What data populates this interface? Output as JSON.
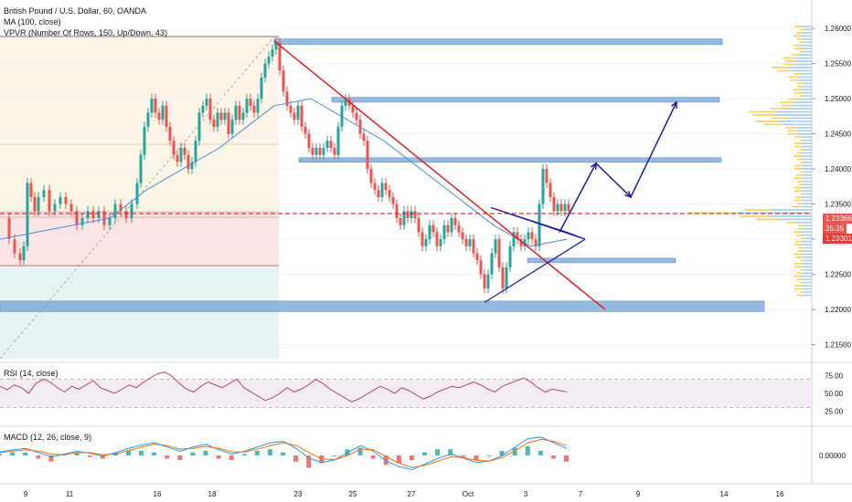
{
  "legend": {
    "symbol": "British Pound / U.S. Dollar, 60, OANDA",
    "ma": "MA (100, close)",
    "vpvr": "VPVR (Number Of Rows, 150, Up/Down, 43)",
    "rsi": "RSI (14, close)",
    "macd": "MACD (12, 26, close, 9)"
  },
  "price_axis": [
    "1.26000",
    "1.25500",
    "1.25000",
    "1.24500",
    "1.24000",
    "1.23500",
    "1.23000",
    "1.22500",
    "1.22000",
    "1.21500"
  ],
  "rsi_axis": [
    "75.00",
    "50.00",
    "25.00"
  ],
  "macd_axis": [
    "0.00000"
  ],
  "time_axis": [
    "9",
    "11",
    "16",
    "18",
    "23",
    "25",
    "27",
    "Oct",
    "3",
    "7",
    "9",
    "14",
    "16"
  ],
  "tags": {
    "last_price": "1.23366",
    "countdown": "35:35",
    "ma_value": "1.23301"
  },
  "colors": {
    "up": "#26a69a",
    "down": "#ef5350",
    "ma": "#4e8fd6",
    "zone": "#6fa3d8",
    "trendline": "#e01e1e",
    "arrow": "#1a1aa8",
    "vpvr_up": "#9ec8ef",
    "vpvr_down": "#f6c948",
    "rsi_line": "#b03a48",
    "macd_line": "#2196f3",
    "signal_line": "#ff6d00"
  },
  "chart_data": {
    "type": "candlestick",
    "symbol": "GBPUSD",
    "timeframe": "60",
    "ylim": [
      1.213,
      1.263
    ],
    "close_path": [
      [
        0,
        1.233
      ],
      [
        8,
        1.23
      ],
      [
        14,
        1.228
      ],
      [
        20,
        1.227
      ],
      [
        24,
        1.229
      ],
      [
        28,
        1.238
      ],
      [
        32,
        1.236
      ],
      [
        36,
        1.234
      ],
      [
        40,
        1.236
      ],
      [
        46,
        1.237
      ],
      [
        52,
        1.234
      ],
      [
        58,
        1.235
      ],
      [
        64,
        1.236
      ],
      [
        70,
        1.235
      ],
      [
        76,
        1.234
      ],
      [
        82,
        1.232
      ],
      [
        88,
        1.233
      ],
      [
        94,
        1.234
      ],
      [
        100,
        1.233
      ],
      [
        106,
        1.234
      ],
      [
        112,
        1.232
      ],
      [
        118,
        1.233
      ],
      [
        124,
        1.235
      ],
      [
        130,
        1.234
      ],
      [
        136,
        1.233
      ],
      [
        142,
        1.235
      ],
      [
        148,
        1.238
      ],
      [
        152,
        1.242
      ],
      [
        156,
        1.246
      ],
      [
        160,
        1.248
      ],
      [
        164,
        1.25
      ],
      [
        168,
        1.248
      ],
      [
        172,
        1.247
      ],
      [
        176,
        1.249
      ],
      [
        180,
        1.246
      ],
      [
        184,
        1.244
      ],
      [
        188,
        1.242
      ],
      [
        192,
        1.241
      ],
      [
        196,
        1.243
      ],
      [
        200,
        1.242
      ],
      [
        204,
        1.24
      ],
      [
        208,
        1.241
      ],
      [
        212,
        1.244
      ],
      [
        216,
        1.248
      ],
      [
        220,
        1.249
      ],
      [
        224,
        1.25
      ],
      [
        228,
        1.247
      ],
      [
        232,
        1.246
      ],
      [
        236,
        1.248
      ],
      [
        240,
        1.247
      ],
      [
        244,
        1.248
      ],
      [
        248,
        1.245
      ],
      [
        252,
        1.247
      ],
      [
        256,
        1.249
      ],
      [
        260,
        1.247
      ],
      [
        264,
        1.248
      ],
      [
        268,
        1.25
      ],
      [
        272,
        1.249
      ],
      [
        276,
        1.248
      ],
      [
        280,
        1.25
      ],
      [
        284,
        1.253
      ],
      [
        288,
        1.255
      ],
      [
        292,
        1.256
      ],
      [
        296,
        1.257
      ],
      [
        300,
        1.258
      ],
      [
        304,
        1.254
      ],
      [
        308,
        1.251
      ],
      [
        312,
        1.249
      ],
      [
        316,
        1.248
      ],
      [
        320,
        1.247
      ],
      [
        324,
        1.249
      ],
      [
        328,
        1.246
      ],
      [
        332,
        1.245
      ],
      [
        336,
        1.243
      ],
      [
        340,
        1.242
      ],
      [
        344,
        1.243
      ],
      [
        348,
        1.242
      ],
      [
        352,
        1.243
      ],
      [
        356,
        1.244
      ],
      [
        360,
        1.243
      ],
      [
        364,
        1.242
      ],
      [
        368,
        1.246
      ],
      [
        372,
        1.249
      ],
      [
        376,
        1.25
      ],
      [
        380,
        1.249
      ],
      [
        384,
        1.248
      ],
      [
        388,
        1.247
      ],
      [
        392,
        1.245
      ],
      [
        396,
        1.244
      ],
      [
        400,
        1.24
      ],
      [
        404,
        1.238
      ],
      [
        408,
        1.237
      ],
      [
        412,
        1.236
      ],
      [
        416,
        1.238
      ],
      [
        420,
        1.237
      ],
      [
        424,
        1.236
      ],
      [
        428,
        1.235
      ],
      [
        432,
        1.233
      ],
      [
        436,
        1.232
      ],
      [
        440,
        1.234
      ],
      [
        444,
        1.233
      ],
      [
        448,
        1.234
      ],
      [
        452,
        1.233
      ],
      [
        456,
        1.231
      ],
      [
        460,
        1.229
      ],
      [
        464,
        1.23
      ],
      [
        468,
        1.232
      ],
      [
        472,
        1.231
      ],
      [
        476,
        1.229
      ],
      [
        480,
        1.23
      ],
      [
        484,
        1.232
      ],
      [
        488,
        1.231
      ],
      [
        492,
        1.233
      ],
      [
        496,
        1.232
      ],
      [
        500,
        1.231
      ],
      [
        504,
        1.23
      ],
      [
        508,
        1.229
      ],
      [
        512,
        1.23
      ],
      [
        516,
        1.228
      ],
      [
        520,
        1.227
      ],
      [
        524,
        1.225
      ],
      [
        528,
        1.223
      ],
      [
        532,
        1.225
      ],
      [
        536,
        1.228
      ],
      [
        540,
        1.23
      ],
      [
        544,
        1.226
      ],
      [
        548,
        1.223
      ],
      [
        552,
        1.226
      ],
      [
        556,
        1.229
      ],
      [
        560,
        1.231
      ],
      [
        564,
        1.23
      ],
      [
        568,
        1.229
      ],
      [
        572,
        1.23
      ],
      [
        576,
        1.231
      ],
      [
        580,
        1.23
      ],
      [
        584,
        1.229
      ],
      [
        588,
        1.235
      ],
      [
        592,
        1.24
      ],
      [
        596,
        1.238
      ],
      [
        600,
        1.236
      ],
      [
        604,
        1.234
      ],
      [
        608,
        1.235
      ],
      [
        612,
        1.234
      ],
      [
        616,
        1.235
      ],
      [
        620,
        1.234
      ]
    ],
    "ma_path": [
      [
        0,
        1.23
      ],
      [
        40,
        1.231
      ],
      [
        80,
        1.232
      ],
      [
        120,
        1.233
      ],
      [
        160,
        1.237
      ],
      [
        200,
        1.24
      ],
      [
        240,
        1.243
      ],
      [
        280,
        1.247
      ],
      [
        300,
        1.249
      ],
      [
        340,
        1.25
      ],
      [
        380,
        1.247
      ],
      [
        420,
        1.244
      ],
      [
        460,
        1.24
      ],
      [
        500,
        1.236
      ],
      [
        540,
        1.232
      ],
      [
        580,
        1.229
      ],
      [
        620,
        1.23
      ]
    ],
    "zones": [
      [
        300,
        790,
        1.2577,
        1.2585
      ],
      [
        363,
        787,
        1.2495,
        1.2502
      ],
      [
        327,
        789,
        1.241,
        1.2416
      ],
      [
        577,
        739,
        1.2267,
        1.2273
      ],
      [
        0,
        836,
        1.2197,
        1.2212
      ]
    ],
    "trendline": [
      [
        300,
        1.2582
      ],
      [
        662,
        1.22
      ]
    ],
    "triangle": [
      [
        537,
        1.2345
      ],
      [
        620,
        1.231
      ],
      [
        530,
        1.221
      ],
      [
        640,
        1.23
      ]
    ],
    "projection": [
      [
        612,
        1.231
      ],
      [
        652,
        1.2408
      ],
      [
        690,
        1.236
      ],
      [
        740,
        1.2495
      ]
    ],
    "last_price": 1.23366,
    "ma_value": 1.23301,
    "rsi": {
      "ylim": [
        10,
        90
      ],
      "values": [
        60,
        55,
        62,
        58,
        50,
        64,
        70,
        66,
        58,
        52,
        60,
        56,
        62,
        68,
        58,
        54,
        50,
        56,
        62,
        58,
        66,
        72,
        78,
        80,
        74,
        64,
        56,
        52,
        60,
        66,
        62,
        58,
        64,
        70,
        58,
        52,
        46,
        40,
        44,
        50,
        58,
        52,
        56,
        62,
        70,
        64,
        56,
        50,
        44,
        38,
        42,
        48,
        54,
        60,
        56,
        50,
        58,
        54,
        48,
        42,
        46,
        52,
        56,
        60,
        58,
        62,
        66,
        62,
        56,
        52,
        60,
        64,
        68,
        72,
        66,
        58,
        52,
        56,
        54,
        52
      ]
    },
    "macd": {
      "ylim": [
        -0.0035,
        0.0035
      ],
      "macd": [
        0.0005,
        0.0008,
        0.001,
        0.0004,
        -0.0002,
        0.0002,
        0.0006,
        0.0003,
        -0.0001,
        0.0004,
        0.001,
        0.0015,
        0.0018,
        0.0012,
        0.0006,
        0.0012,
        0.0016,
        0.0008,
        0.0002,
        0.0006,
        0.0012,
        0.0018,
        0.002,
        0.001,
        -0.0004,
        -0.001,
        -0.0006,
        0.0004,
        0.0014,
        0.0006,
        -0.0008,
        -0.0016,
        -0.002,
        -0.0012,
        -0.0004,
        0.0002,
        -0.0004,
        -0.001,
        -0.0008,
        0.0,
        0.0012,
        0.0024,
        0.0026,
        0.0018,
        0.001
      ],
      "signal": [
        0.0004,
        0.0006,
        0.0008,
        0.0006,
        0.0002,
        0.0001,
        0.0004,
        0.0004,
        0.0001,
        0.0002,
        0.0007,
        0.0012,
        0.0016,
        0.0014,
        0.0009,
        0.001,
        0.0013,
        0.001,
        0.0005,
        0.0005,
        0.0009,
        0.0014,
        0.0018,
        0.0014,
        0.0004,
        -0.0005,
        -0.0006,
        0.0,
        0.0009,
        0.0008,
        -0.0002,
        -0.0011,
        -0.0017,
        -0.0014,
        -0.0008,
        -0.0002,
        -0.0003,
        -0.0007,
        -0.0008,
        -0.0003,
        0.0007,
        0.0018,
        0.0023,
        0.002,
        0.0014
      ]
    }
  }
}
